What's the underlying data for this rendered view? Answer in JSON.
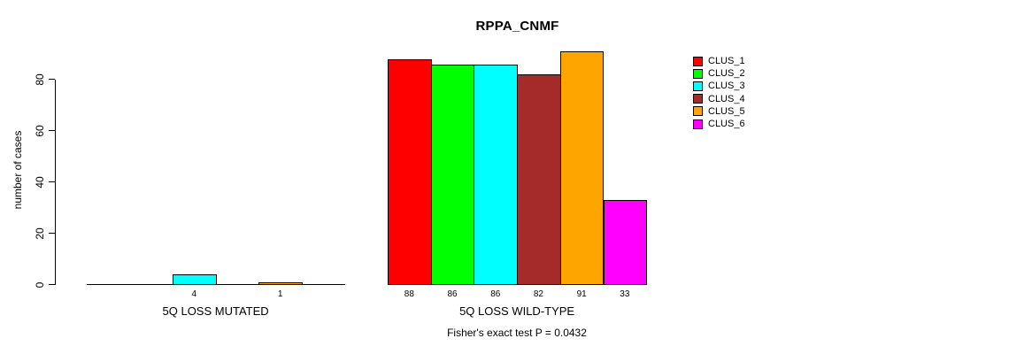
{
  "title": "RPPA_CNMF",
  "subtitle": "Fisher's exact test P = 0.0432",
  "y_axis": {
    "label": "number of cases",
    "tick_labels": [
      "0",
      "20",
      "40",
      "60",
      "80"
    ]
  },
  "legend": {
    "items": [
      {
        "label": "CLUS_1",
        "color": "#FF0000"
      },
      {
        "label": "CLUS_2",
        "color": "#00FF00"
      },
      {
        "label": "CLUS_3",
        "color": "#00FFFF"
      },
      {
        "label": "CLUS_4",
        "color": "#A52A2A"
      },
      {
        "label": "CLUS_5",
        "color": "#FFA500"
      },
      {
        "label": "CLUS_6",
        "color": "#FF00FF"
      }
    ]
  },
  "chart_data": {
    "type": "bar",
    "title": "RPPA_CNMF",
    "ylabel": "number of cases",
    "ylim": [
      0,
      95
    ],
    "axis_ticks": [
      0,
      20,
      40,
      60,
      80
    ],
    "grid": false,
    "legend_position": "right",
    "categories": [
      "5Q LOSS MUTATED",
      "5Q LOSS WILD-TYPE"
    ],
    "series": [
      {
        "name": "CLUS_1",
        "color": "#FF0000",
        "values": [
          0,
          88
        ]
      },
      {
        "name": "CLUS_2",
        "color": "#00FF00",
        "values": [
          0,
          86
        ]
      },
      {
        "name": "CLUS_3",
        "color": "#00FFFF",
        "values": [
          4,
          86
        ]
      },
      {
        "name": "CLUS_4",
        "color": "#A52A2A",
        "values": [
          0,
          82
        ]
      },
      {
        "name": "CLUS_5",
        "color": "#FFA500",
        "values": [
          1,
          91
        ]
      },
      {
        "name": "CLUS_6",
        "color": "#FF00FF",
        "values": [
          0,
          33
        ]
      }
    ],
    "bar_value_labels": [
      [
        "",
        "",
        "4",
        "",
        "1",
        ""
      ],
      [
        "88",
        "86",
        "86",
        "82",
        "91",
        "33"
      ]
    ],
    "annotation": "Fisher's exact test P = 0.0432"
  }
}
